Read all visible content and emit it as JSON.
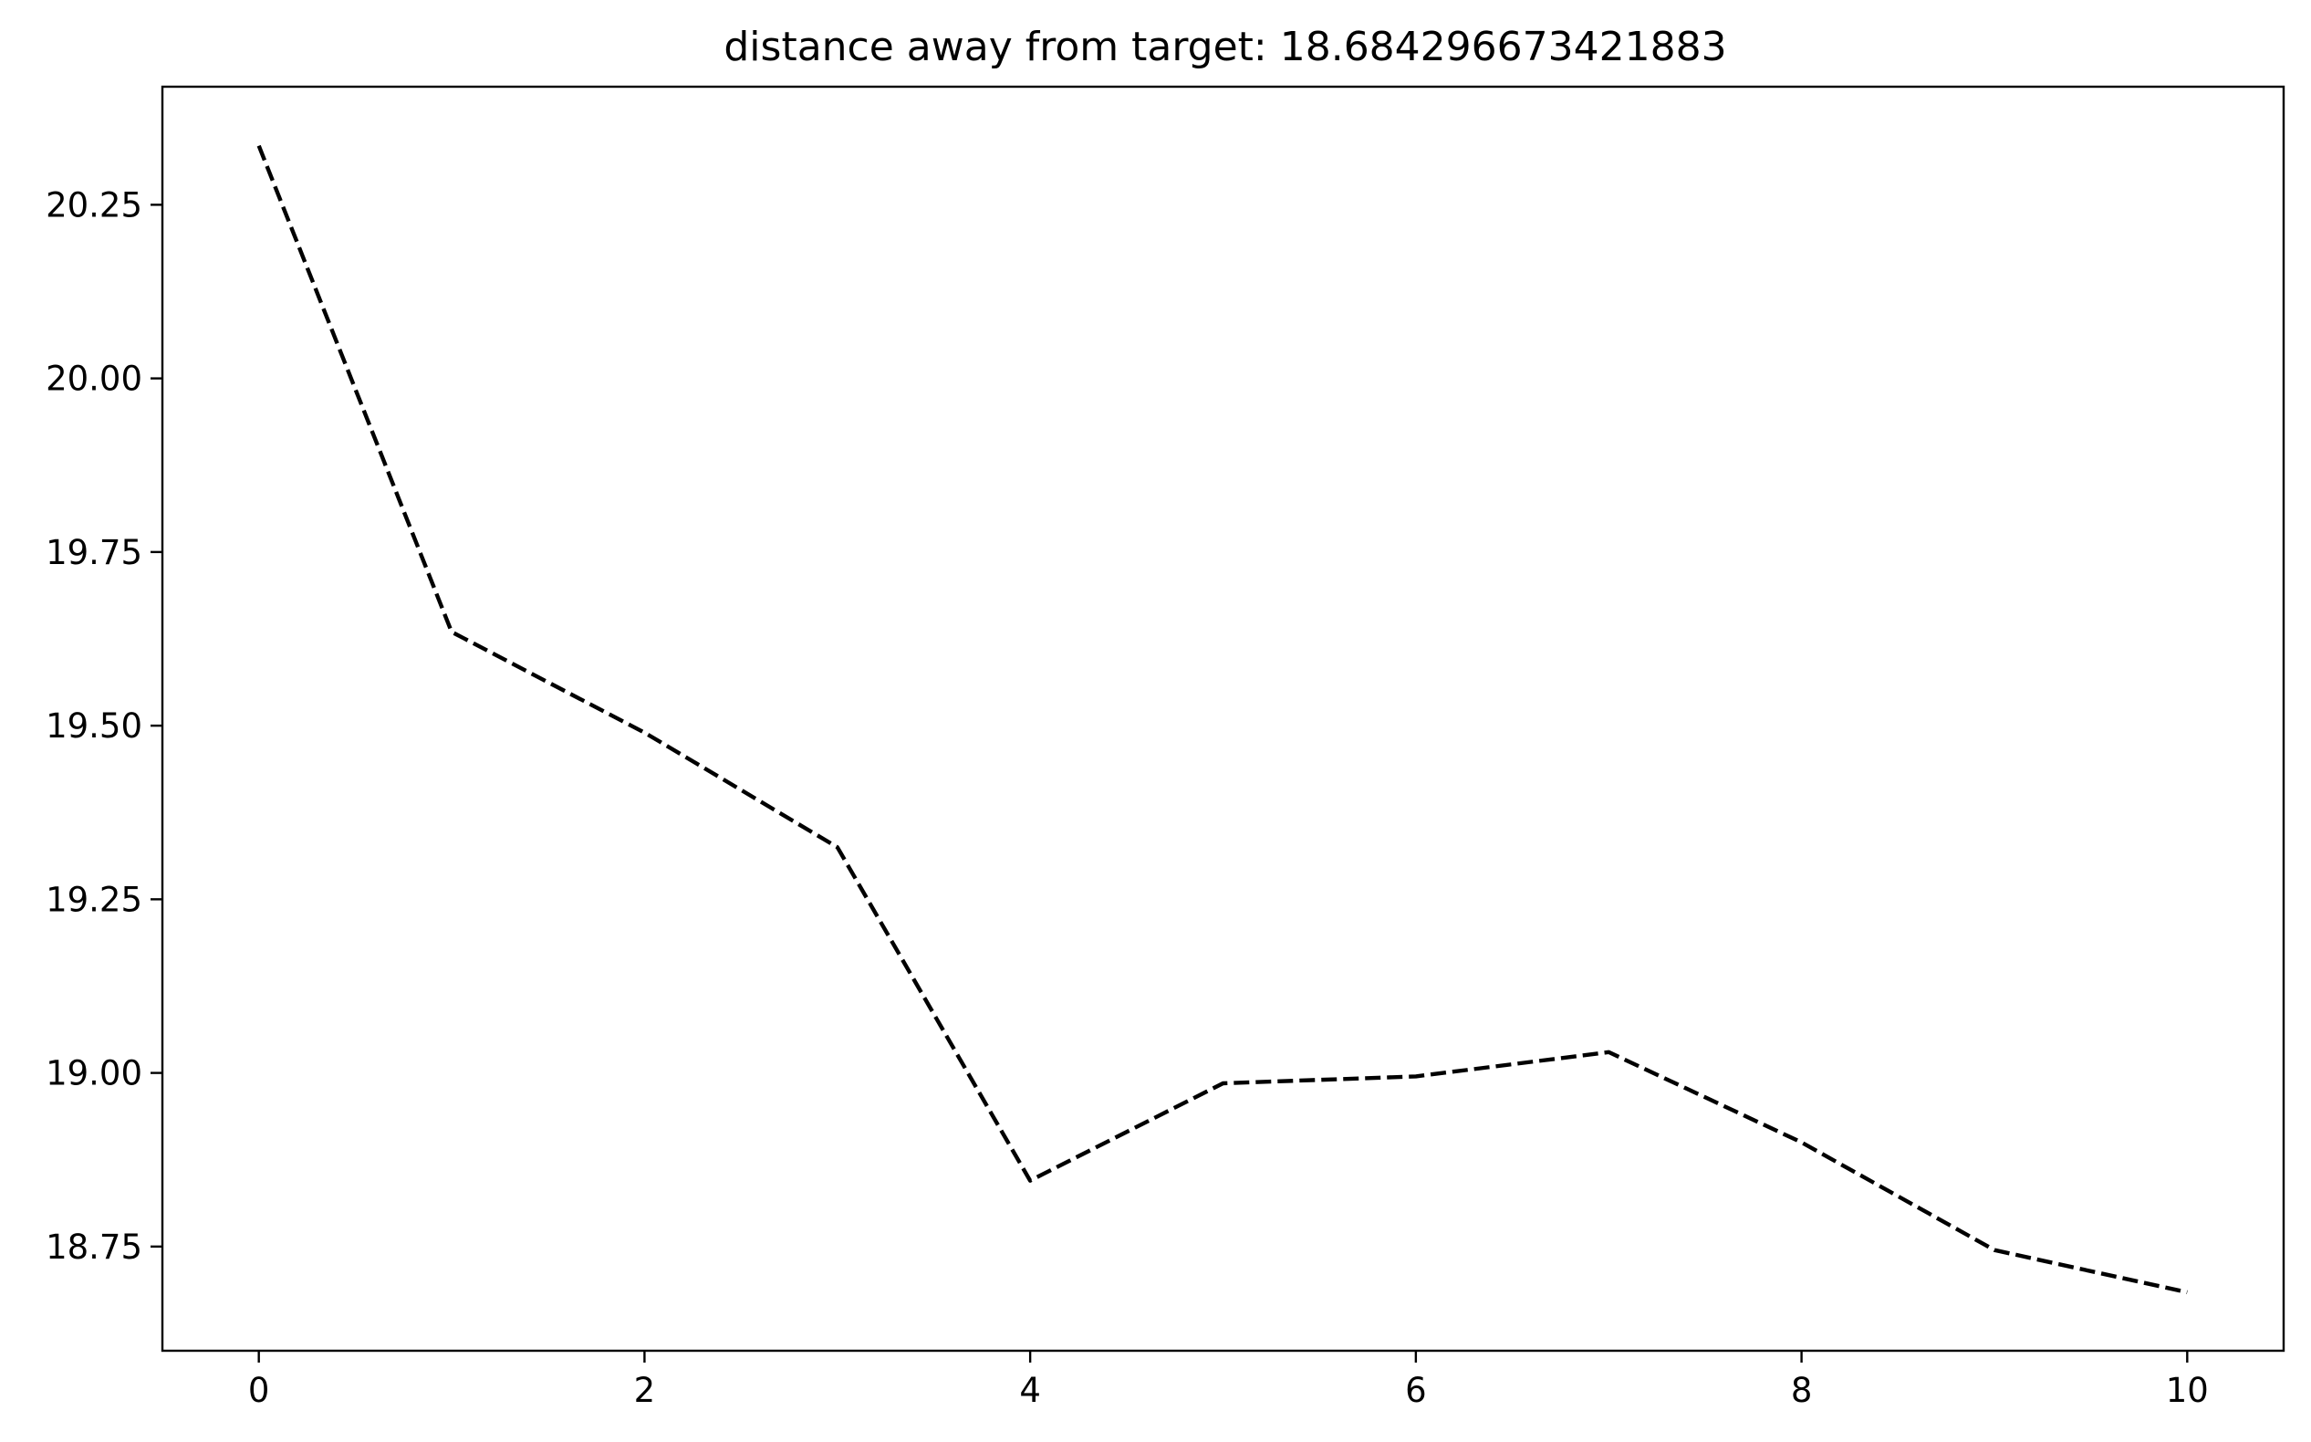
{
  "chart_data": {
    "type": "line",
    "title": "distance away from target: 18.684296673421883",
    "xlabel": "",
    "ylabel": "",
    "x": [
      0,
      1,
      2,
      3,
      4,
      5,
      6,
      7,
      8,
      9,
      10
    ],
    "series": [
      {
        "values": [
          20.335,
          19.635,
          19.49,
          19.325,
          18.845,
          18.985,
          18.995,
          19.03,
          18.9,
          18.745,
          18.684296673421883
        ],
        "color": "#000000",
        "line_style": "dashed"
      }
    ],
    "xlim": [
      -0.5,
      10.5
    ],
    "ylim": [
      18.6,
      20.42
    ],
    "xticks": [
      0,
      2,
      4,
      6,
      8,
      10
    ],
    "xtick_labels": [
      "0",
      "2",
      "4",
      "6",
      "8",
      "10"
    ],
    "yticks": [
      18.75,
      19.0,
      19.25,
      19.5,
      19.75,
      20.0,
      20.25
    ],
    "ytick_labels": [
      "18.75",
      "19.00",
      "19.25",
      "19.50",
      "19.75",
      "20.00",
      "20.25"
    ],
    "grid": false,
    "legend": "none"
  }
}
